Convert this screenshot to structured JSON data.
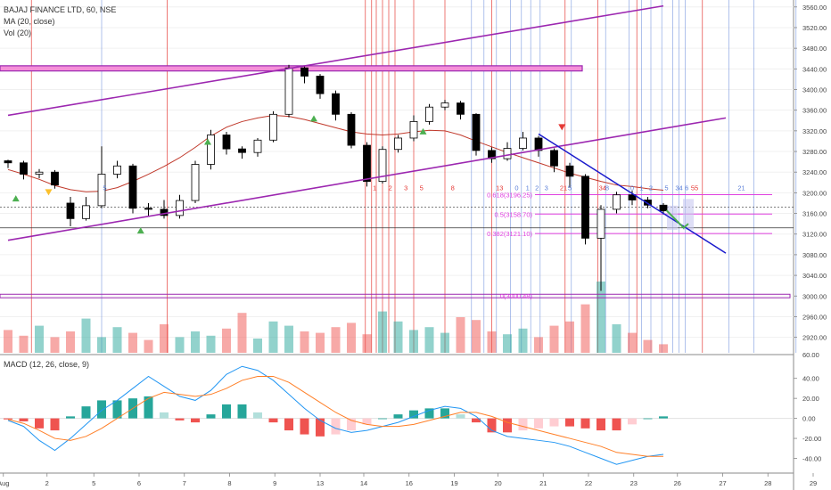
{
  "header": {
    "symbol_line": "BAJAJ FINANCE LTD, 60, NSE",
    "ma_label": "MA (20, close)",
    "vol_label": "Vol (20)",
    "macd_label": "MACD (12, 26, close, 9)"
  },
  "colors": {
    "up": "#26a69a",
    "down": "#ef5350",
    "candle_body": "#000000",
    "ma": "#c0392b",
    "channel": "#9c27b0",
    "fib": "#e040e0",
    "trendline": "#1a1acc",
    "macd": "#2196f3",
    "signal": "#ff7f27",
    "red_vline": "#e53935",
    "blue_vline": "#5b7fd8"
  },
  "chart_data": [
    {
      "type": "candlestick",
      "title": "BAJAJ FINANCE LTD, 60, NSE",
      "y_ticks": [
        "3560.00",
        "3520.00",
        "3480.00",
        "3440.00",
        "3400.00",
        "3360.00",
        "3320.00",
        "3280.00",
        "3240.00",
        "3200.00",
        "3160.00",
        "3120.00",
        "3080.00",
        "3040.00",
        "3000.00",
        "2960.00",
        "2920.00"
      ],
      "ylim": [
        2890,
        3570
      ],
      "x_ticks": [
        "Aug",
        "2",
        "5",
        "6",
        "7",
        "8",
        "9",
        "13",
        "14",
        "16",
        "19",
        "20",
        "21",
        "22",
        "23",
        "26",
        "27",
        "28",
        "29"
      ],
      "ma": [
        3245,
        3236,
        3226,
        3214,
        3206,
        3202,
        3203,
        3210,
        3222,
        3236,
        3251,
        3268,
        3288,
        3310,
        3327,
        3338,
        3345,
        3350,
        3348,
        3342,
        3334,
        3326,
        3318,
        3314,
        3312,
        3314,
        3318,
        3321,
        3320,
        3312,
        3300,
        3289,
        3278,
        3268,
        3258,
        3248,
        3238,
        3230,
        3222,
        3215,
        3212,
        3208,
        3205
      ],
      "candles": [
        [
          3262,
          3258,
          3248,
          3264
        ],
        [
          3258,
          3236,
          3226,
          3262
        ],
        [
          3236,
          3240,
          3228,
          3246
        ],
        [
          3240,
          3215,
          3208,
          3244
        ],
        [
          3180,
          3150,
          3135,
          3192
        ],
        [
          3150,
          3175,
          3146,
          3192
        ],
        [
          3175,
          3236,
          3170,
          3290
        ],
        [
          3236,
          3252,
          3228,
          3262
        ],
        [
          3252,
          3170,
          3160,
          3256
        ],
        [
          3170,
          3168,
          3155,
          3180
        ],
        [
          3168,
          3156,
          3150,
          3186
        ],
        [
          3156,
          3185,
          3150,
          3196
        ],
        [
          3185,
          3255,
          3180,
          3262
        ],
        [
          3255,
          3312,
          3245,
          3322
        ],
        [
          3312,
          3285,
          3274,
          3318
        ],
        [
          3285,
          3278,
          3266,
          3290
        ],
        [
          3278,
          3302,
          3270,
          3306
        ],
        [
          3302,
          3352,
          3298,
          3358
        ],
        [
          3352,
          3442,
          3346,
          3448
        ],
        [
          3442,
          3426,
          3412,
          3446
        ],
        [
          3426,
          3392,
          3382,
          3430
        ],
        [
          3392,
          3352,
          3340,
          3398
        ],
        [
          3352,
          3292,
          3286,
          3356
        ],
        [
          3292,
          3222,
          3212,
          3298
        ],
        [
          3222,
          3284,
          3218,
          3290
        ],
        [
          3284,
          3306,
          3278,
          3312
        ],
        [
          3306,
          3338,
          3300,
          3350
        ],
        [
          3338,
          3366,
          3332,
          3372
        ],
        [
          3366,
          3374,
          3360,
          3380
        ],
        [
          3374,
          3352,
          3342,
          3378
        ],
        [
          3352,
          3282,
          3272,
          3354
        ],
        [
          3282,
          3266,
          3258,
          3288
        ],
        [
          3266,
          3286,
          3262,
          3298
        ],
        [
          3286,
          3306,
          3282,
          3318
        ],
        [
          3306,
          3282,
          3270,
          3310
        ],
        [
          3282,
          3252,
          3240,
          3286
        ],
        [
          3252,
          3232,
          3210,
          3258
        ],
        [
          3232,
          3112,
          3100,
          3236
        ],
        [
          3112,
          3168,
          3010,
          3176
        ],
        [
          3168,
          3196,
          3160,
          3202
        ],
        [
          3196,
          3186,
          3176,
          3204
        ],
        [
          3186,
          3176,
          3170,
          3192
        ],
        [
          3176,
          3165,
          3158,
          3180
        ]
      ],
      "volume": [
        32,
        24,
        38,
        22,
        30,
        48,
        22,
        36,
        28,
        18,
        40,
        22,
        30,
        24,
        34,
        56,
        20,
        44,
        38,
        30,
        28,
        36,
        42,
        26,
        58,
        44,
        32,
        36,
        28,
        50,
        46,
        30,
        26,
        34,
        22,
        38,
        44,
        68,
        100,
        40,
        28,
        18,
        12
      ],
      "volume_axis_max": 100,
      "macd": [
        -2,
        -8,
        -22,
        -32,
        -20,
        -6,
        8,
        18,
        30,
        42,
        32,
        22,
        18,
        28,
        44,
        52,
        48,
        38,
        24,
        10,
        -2,
        -10,
        -14,
        -12,
        -8,
        -4,
        2,
        8,
        12,
        10,
        2,
        -12,
        -18,
        -20,
        -22,
        -24,
        -28,
        -34,
        -40,
        -46,
        -42,
        -38,
        -36
      ],
      "macd_signal": [
        -1,
        -5,
        -12,
        -20,
        -22,
        -18,
        -10,
        0,
        10,
        20,
        26,
        24,
        22,
        24,
        30,
        38,
        42,
        42,
        36,
        26,
        16,
        6,
        -2,
        -6,
        -8,
        -8,
        -6,
        -2,
        2,
        6,
        6,
        2,
        -4,
        -8,
        -12,
        -16,
        -20,
        -24,
        -28,
        -34,
        -36,
        -38,
        -38
      ],
      "macd_ticks": [
        "40.00",
        "20.00",
        "0.00",
        "-20.00",
        "-40.00"
      ],
      "macd_ylim": [
        -52,
        62
      ],
      "fib_levels": [
        {
          "label": "0.618(3196.25)",
          "value": 3196.25
        },
        {
          "label": "0.5(3158.70)",
          "value": 3158.7
        },
        {
          "label": "0.382(3121.10)",
          "value": 3121.1
        },
        {
          "label": "0(3000.48)",
          "value": 3000.48
        }
      ],
      "horizontal_lines": [
        3172,
        3132,
        3000
      ],
      "resistance_zone": [
        3436,
        3446
      ],
      "channel_upper": [
        [
          0,
          3350
        ],
        [
          42,
          3562
        ]
      ],
      "channel_lower": [
        [
          0,
          3108
        ],
        [
          46,
          3345
        ]
      ],
      "channel_mid": [
        [
          0,
          3108
        ],
        [
          24,
          3225
        ]
      ],
      "downtrend_line": [
        [
          34,
          3314
        ],
        [
          46,
          3083
        ]
      ],
      "count_labels_red": [
        {
          "i": 23.5,
          "t": "1"
        },
        {
          "i": 24.5,
          "t": "2"
        },
        {
          "i": 25.5,
          "t": "3"
        },
        {
          "i": 26.5,
          "t": "5"
        },
        {
          "i": 28.5,
          "t": "8"
        },
        {
          "i": 31.5,
          "t": "13"
        },
        {
          "i": 35.6,
          "t": "21"
        },
        {
          "i": 38.1,
          "t": "34"
        },
        {
          "i": 44.0,
          "t": "55"
        }
      ],
      "count_labels_blue": [
        {
          "i": 6.2,
          "t": "5"
        },
        {
          "i": 32.6,
          "t": "0"
        },
        {
          "i": 33.3,
          "t": "1"
        },
        {
          "i": 33.9,
          "t": "2"
        },
        {
          "i": 34.5,
          "t": "3"
        },
        {
          "i": 36.0,
          "t": "5"
        },
        {
          "i": 38.4,
          "t": "8"
        },
        {
          "i": 40.0,
          "t": "0"
        },
        {
          "i": 40.6,
          "t": "1"
        },
        {
          "i": 41.2,
          "t": "2"
        },
        {
          "i": 42.2,
          "t": "5"
        },
        {
          "i": 43.0,
          "t": "34"
        },
        {
          "i": 43.5,
          "t": "6"
        },
        {
          "i": 47.0,
          "t": "21"
        }
      ],
      "arrow_down": [
        {
          "i": 35.5,
          "v": 3326
        }
      ],
      "arrows_up": [
        {
          "i": 0.5,
          "v": 3190
        },
        {
          "i": 12.8,
          "v": 3300
        },
        {
          "i": 19.6,
          "v": 3345
        },
        {
          "i": 26.6,
          "v": 3320
        },
        {
          "i": 8.5,
          "v": 3128
        }
      ],
      "arrow_yellow": [
        {
          "i": 2.6,
          "v": 3200
        }
      ]
    }
  ]
}
